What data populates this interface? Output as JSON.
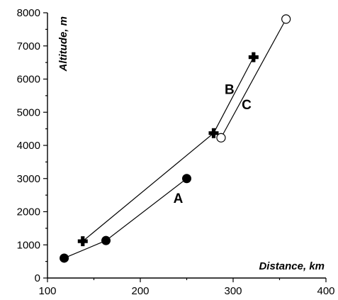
{
  "chart_data": {
    "type": "line",
    "xlabel": "Distance, km",
    "ylabel": "Altitude, m",
    "xlim": [
      100,
      400
    ],
    "ylim": [
      0,
      8000
    ],
    "x_ticks": [
      100,
      200,
      300,
      400
    ],
    "y_ticks": [
      0,
      1000,
      2000,
      3000,
      4000,
      5000,
      6000,
      7000,
      8000
    ],
    "grid": false,
    "legend": "none",
    "series": [
      {
        "name": "A",
        "marker": "filled-circle",
        "x": [
          118,
          163,
          250
        ],
        "y": [
          600,
          1130,
          3000
        ]
      },
      {
        "name": "B",
        "marker": "cross",
        "x": [
          138,
          279,
          322
        ],
        "y": [
          1110,
          4370,
          6660
        ]
      },
      {
        "name": "C",
        "marker": "open-circle",
        "x": [
          287,
          357
        ],
        "y": [
          4230,
          7810
        ]
      }
    ]
  }
}
